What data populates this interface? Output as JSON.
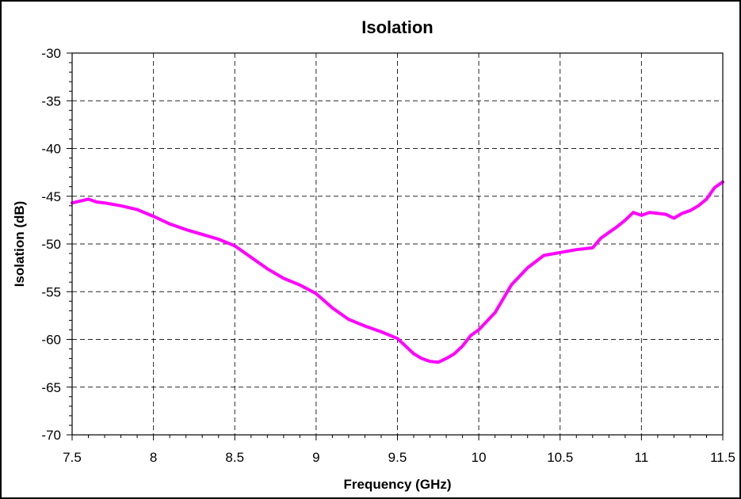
{
  "chart_data": {
    "type": "line",
    "title": "Isolation",
    "xlabel": "Frequency (GHz)",
    "ylabel": "Isolation (dB)",
    "xlim": [
      7.5,
      11.5
    ],
    "ylim": [
      -70,
      -30
    ],
    "x_ticks": [
      7.5,
      8,
      8.5,
      9,
      9.5,
      10,
      10.5,
      11,
      11.5
    ],
    "x_tick_labels": [
      "7.5",
      "8",
      "8.5",
      "9",
      "9.5",
      "10",
      "10.5",
      "11",
      "11.5"
    ],
    "y_ticks": [
      -30,
      -35,
      -40,
      -45,
      -50,
      -55,
      -60,
      -65,
      -70
    ],
    "y_tick_labels": [
      "-30",
      "-35",
      "-40",
      "-45",
      "-50",
      "-55",
      "-60",
      "-65",
      "-70"
    ],
    "grid": true,
    "legend": false,
    "series": [
      {
        "color": "#ff00ff",
        "x": [
          7.5,
          7.55,
          7.6,
          7.65,
          7.7,
          7.8,
          7.9,
          8.0,
          8.1,
          8.2,
          8.3,
          8.4,
          8.5,
          8.6,
          8.7,
          8.8,
          8.9,
          9.0,
          9.1,
          9.2,
          9.3,
          9.4,
          9.5,
          9.6,
          9.65,
          9.7,
          9.75,
          9.8,
          9.85,
          9.9,
          9.95,
          10.0,
          10.1,
          10.2,
          10.3,
          10.4,
          10.5,
          10.6,
          10.7,
          10.75,
          10.8,
          10.85,
          10.9,
          10.95,
          11.0,
          11.05,
          11.1,
          11.15,
          11.2,
          11.25,
          11.3,
          11.35,
          11.4,
          11.45,
          11.5
        ],
        "y": [
          -45.7,
          -45.5,
          -45.3,
          -45.6,
          -45.7,
          -46.0,
          -46.4,
          -47.1,
          -47.9,
          -48.5,
          -49.0,
          -49.5,
          -50.2,
          -51.4,
          -52.6,
          -53.6,
          -54.3,
          -55.2,
          -56.7,
          -57.9,
          -58.6,
          -59.2,
          -59.9,
          -61.5,
          -62.0,
          -62.3,
          -62.4,
          -62.0,
          -61.5,
          -60.7,
          -59.6,
          -59.0,
          -57.2,
          -54.3,
          -52.5,
          -51.2,
          -50.9,
          -50.6,
          -50.4,
          -49.4,
          -48.8,
          -48.2,
          -47.5,
          -46.7,
          -47.0,
          -46.7,
          -46.8,
          -46.9,
          -47.3,
          -46.8,
          -46.5,
          -46.0,
          -45.3,
          -44.1,
          -43.5
        ]
      }
    ]
  }
}
